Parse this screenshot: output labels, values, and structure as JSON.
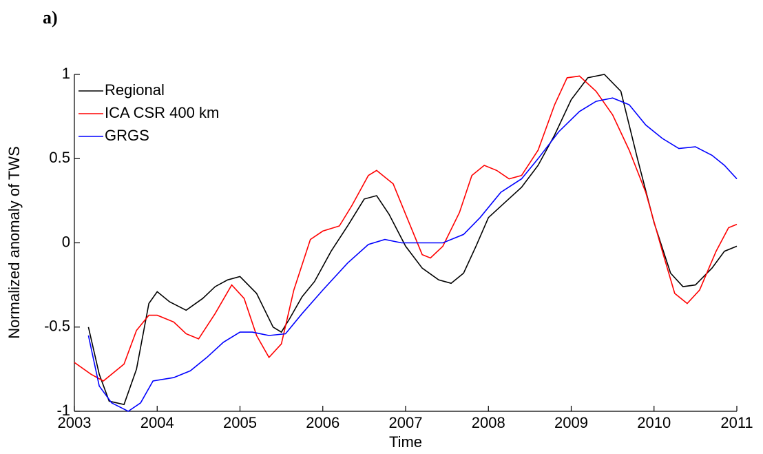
{
  "panel_label": "a)",
  "chart_data": {
    "type": "line",
    "xlabel": "Time",
    "ylabel": "Normalized anomaly of TWS",
    "xlim": [
      2003,
      2011
    ],
    "xticks": [
      2003,
      2004,
      2005,
      2006,
      2007,
      2008,
      2009,
      2010,
      2011
    ],
    "ylim": [
      -1,
      1
    ],
    "yticks": [
      -1,
      -0.5,
      0,
      0.5,
      1
    ],
    "legend": "upper-left",
    "series": [
      {
        "name": "Regional",
        "color": "#000000",
        "x": [
          2003.17,
          2003.3,
          2003.42,
          2003.6,
          2003.75,
          2003.9,
          2004.0,
          2004.15,
          2004.35,
          2004.55,
          2004.7,
          2004.85,
          2005.0,
          2005.2,
          2005.4,
          2005.5,
          2005.6,
          2005.75,
          2005.9,
          2006.1,
          2006.3,
          2006.5,
          2006.65,
          2006.8,
          2007.0,
          2007.2,
          2007.4,
          2007.55,
          2007.7,
          2007.85,
          2008.0,
          2008.2,
          2008.4,
          2008.6,
          2008.8,
          2009.0,
          2009.2,
          2009.4,
          2009.6,
          2009.8,
          2010.0,
          2010.2,
          2010.35,
          2010.5,
          2010.7,
          2010.85,
          2011.0
        ],
        "values": [
          -0.5,
          -0.78,
          -0.94,
          -0.96,
          -0.75,
          -0.36,
          -0.29,
          -0.35,
          -0.4,
          -0.33,
          -0.26,
          -0.22,
          -0.2,
          -0.3,
          -0.5,
          -0.53,
          -0.45,
          -0.32,
          -0.23,
          -0.05,
          0.1,
          0.26,
          0.28,
          0.17,
          -0.02,
          -0.15,
          -0.22,
          -0.24,
          -0.18,
          -0.02,
          0.15,
          0.24,
          0.33,
          0.46,
          0.64,
          0.85,
          0.98,
          1.0,
          0.9,
          0.5,
          0.12,
          -0.18,
          -0.26,
          -0.25,
          -0.15,
          -0.05,
          -0.02
        ]
      },
      {
        "name": "ICA CSR 400 km",
        "color": "#ff0000",
        "x": [
          2003.0,
          2003.2,
          2003.35,
          2003.6,
          2003.75,
          2003.9,
          2004.0,
          2004.2,
          2004.35,
          2004.5,
          2004.7,
          2004.9,
          2005.05,
          2005.2,
          2005.35,
          2005.5,
          2005.65,
          2005.85,
          2006.0,
          2006.2,
          2006.35,
          2006.55,
          2006.65,
          2006.85,
          2007.0,
          2007.2,
          2007.3,
          2007.45,
          2007.65,
          2007.8,
          2007.95,
          2008.1,
          2008.25,
          2008.4,
          2008.6,
          2008.8,
          2008.95,
          2009.1,
          2009.3,
          2009.5,
          2009.7,
          2009.9,
          2010.1,
          2010.25,
          2010.4,
          2010.55,
          2010.75,
          2010.9,
          2011.0
        ],
        "values": [
          -0.71,
          -0.78,
          -0.82,
          -0.72,
          -0.52,
          -0.43,
          -0.43,
          -0.47,
          -0.54,
          -0.57,
          -0.42,
          -0.25,
          -0.33,
          -0.55,
          -0.68,
          -0.6,
          -0.28,
          0.02,
          0.07,
          0.1,
          0.22,
          0.4,
          0.43,
          0.35,
          0.17,
          -0.07,
          -0.09,
          -0.02,
          0.18,
          0.4,
          0.46,
          0.43,
          0.38,
          0.4,
          0.55,
          0.82,
          0.98,
          0.99,
          0.9,
          0.76,
          0.55,
          0.3,
          -0.05,
          -0.3,
          -0.36,
          -0.28,
          -0.05,
          0.09,
          0.11
        ]
      },
      {
        "name": "GRGS",
        "color": "#0000ff",
        "x": [
          2003.17,
          2003.3,
          2003.45,
          2003.65,
          2003.8,
          2003.95,
          2004.2,
          2004.4,
          2004.6,
          2004.8,
          2005.0,
          2005.15,
          2005.35,
          2005.55,
          2005.75,
          2006.0,
          2006.3,
          2006.55,
          2006.75,
          2006.95,
          2007.2,
          2007.45,
          2007.7,
          2007.9,
          2008.15,
          2008.4,
          2008.6,
          2008.85,
          2009.1,
          2009.3,
          2009.5,
          2009.7,
          2009.9,
          2010.1,
          2010.3,
          2010.5,
          2010.7,
          2010.85,
          2011.0
        ],
        "values": [
          -0.55,
          -0.85,
          -0.95,
          -1.0,
          -0.95,
          -0.82,
          -0.8,
          -0.76,
          -0.68,
          -0.59,
          -0.53,
          -0.53,
          -0.55,
          -0.54,
          -0.42,
          -0.28,
          -0.12,
          -0.01,
          0.02,
          0.0,
          0.0,
          0.0,
          0.05,
          0.15,
          0.3,
          0.38,
          0.5,
          0.66,
          0.78,
          0.84,
          0.86,
          0.82,
          0.7,
          0.62,
          0.56,
          0.57,
          0.52,
          0.46,
          0.38
        ]
      }
    ]
  }
}
